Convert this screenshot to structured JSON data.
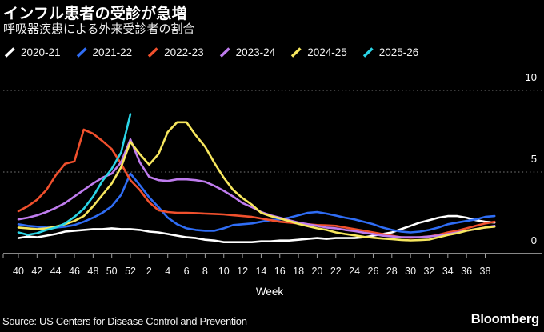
{
  "footer": {
    "source": "Source: US Centers for Disease Control and Prevention",
    "brand": "Bloomberg"
  },
  "chart_data": {
    "type": "line",
    "title": "インフル患者の受診が急増",
    "subtitle": "呼吸器疾患による外来受診者の割合",
    "xlabel": "Week",
    "ylim": [
      0,
      10
    ],
    "yticks": [
      0,
      5,
      10
    ],
    "grid": "horizontal-dotted",
    "legend_position": "top",
    "categories": [
      "40",
      "41",
      "42",
      "43",
      "44",
      "45",
      "46",
      "47",
      "48",
      "49",
      "50",
      "51",
      "52",
      "1",
      "2",
      "3",
      "4",
      "5",
      "6",
      "7",
      "8",
      "9",
      "10",
      "11",
      "12",
      "13",
      "14",
      "15",
      "16",
      "17",
      "18",
      "19",
      "20",
      "21",
      "22",
      "23",
      "24",
      "25",
      "26",
      "27",
      "28",
      "29",
      "30",
      "31",
      "32",
      "33",
      "34",
      "35",
      "36",
      "37",
      "38",
      "39"
    ],
    "series": [
      {
        "name": "2020-21",
        "color": "#ffffff",
        "values": [
          0.95,
          1.05,
          1.0,
          1.1,
          1.2,
          1.35,
          1.4,
          1.45,
          1.5,
          1.5,
          1.55,
          1.5,
          1.5,
          1.45,
          1.35,
          1.3,
          1.2,
          1.1,
          1.0,
          0.95,
          0.85,
          0.8,
          0.7,
          0.7,
          0.7,
          0.7,
          0.75,
          0.75,
          0.8,
          0.8,
          0.85,
          0.9,
          0.95,
          0.9,
          0.95,
          0.95,
          0.95,
          1.0,
          1.1,
          1.2,
          1.3,
          1.5,
          1.7,
          1.9,
          2.05,
          2.2,
          2.3,
          2.3,
          2.2,
          2.05,
          1.95,
          1.9
        ]
      },
      {
        "name": "2021-22",
        "color": "#2f6df5",
        "values": [
          1.8,
          1.7,
          1.65,
          1.6,
          1.6,
          1.65,
          1.75,
          1.95,
          2.2,
          2.5,
          2.9,
          3.6,
          4.9,
          4.2,
          3.45,
          2.85,
          2.2,
          1.8,
          1.55,
          1.45,
          1.4,
          1.4,
          1.55,
          1.75,
          1.8,
          1.85,
          1.95,
          2.05,
          2.1,
          2.2,
          2.35,
          2.5,
          2.55,
          2.45,
          2.33,
          2.2,
          2.1,
          1.95,
          1.8,
          1.6,
          1.45,
          1.35,
          1.3,
          1.35,
          1.45,
          1.6,
          1.8,
          1.9,
          2.0,
          2.1,
          2.25,
          2.3
        ]
      },
      {
        "name": "2022-23",
        "color": "#f0502d",
        "values": [
          2.6,
          2.9,
          3.3,
          3.9,
          4.8,
          5.5,
          5.65,
          7.6,
          7.35,
          6.9,
          6.4,
          5.5,
          4.5,
          3.9,
          3.15,
          2.65,
          2.55,
          2.5,
          2.5,
          2.48,
          2.45,
          2.43,
          2.4,
          2.35,
          2.3,
          2.25,
          2.15,
          2.05,
          1.95,
          1.9,
          1.85,
          1.8,
          1.75,
          1.73,
          1.7,
          1.6,
          1.5,
          1.4,
          1.3,
          1.2,
          1.1,
          1.0,
          0.97,
          1.0,
          1.05,
          1.15,
          1.3,
          1.4,
          1.55,
          1.7,
          1.85,
          1.95
        ]
      },
      {
        "name": "2023-24",
        "color": "#bf7cee",
        "values": [
          2.1,
          2.2,
          2.35,
          2.55,
          2.8,
          3.1,
          3.5,
          3.9,
          4.3,
          4.65,
          4.9,
          5.6,
          7.0,
          5.6,
          4.7,
          4.5,
          4.45,
          4.55,
          4.55,
          4.5,
          4.4,
          4.15,
          3.85,
          3.5,
          3.1,
          2.85,
          2.55,
          2.35,
          2.2,
          2.05,
          1.9,
          1.8,
          1.7,
          1.6,
          1.55,
          1.45,
          1.38,
          1.28,
          1.2,
          1.1,
          1.05,
          1.0,
          1.0,
          1.0,
          1.05,
          1.1,
          1.2,
          1.3,
          1.4,
          1.5,
          1.6,
          1.7
        ]
      },
      {
        "name": "2024-25",
        "color": "#f7e75e",
        "values": [
          1.6,
          1.55,
          1.5,
          1.55,
          1.65,
          1.8,
          2.0,
          2.3,
          2.9,
          3.6,
          4.3,
          5.3,
          6.85,
          6.1,
          5.45,
          6.1,
          7.45,
          8.05,
          8.05,
          7.25,
          6.55,
          5.55,
          4.65,
          3.9,
          3.4,
          3.0,
          2.5,
          2.3,
          2.15,
          2.0,
          1.82,
          1.68,
          1.55,
          1.45,
          1.3,
          1.2,
          1.12,
          1.03,
          0.97,
          0.92,
          0.88,
          0.84,
          0.81,
          0.83,
          0.86,
          1.0,
          1.14,
          1.25,
          1.4,
          1.5,
          1.6,
          1.65
        ]
      },
      {
        "name": "2025-26",
        "color": "#2ad4e6",
        "values": [
          1.3,
          1.15,
          1.25,
          1.45,
          1.6,
          1.85,
          2.25,
          2.75,
          3.5,
          4.45,
          5.2,
          6.2,
          8.55
        ]
      }
    ]
  }
}
